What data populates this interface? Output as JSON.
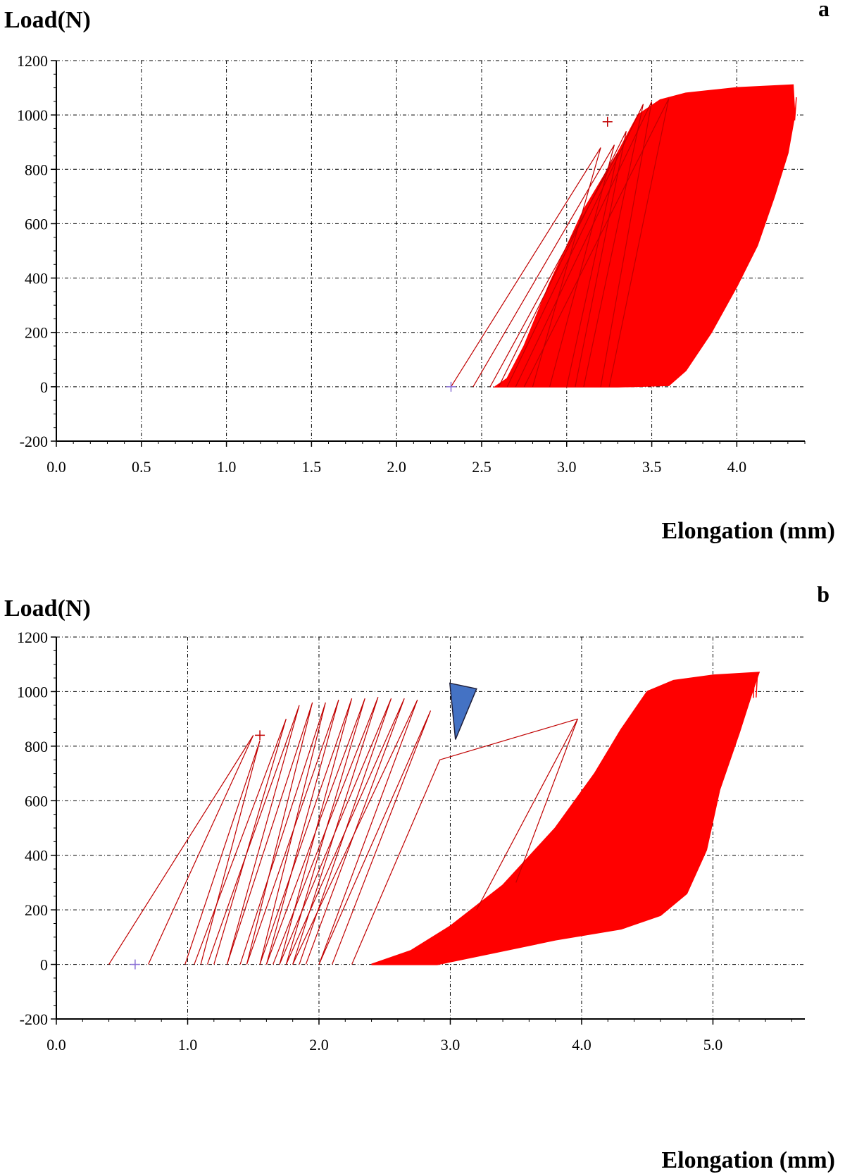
{
  "chart_data": [
    {
      "type": "line",
      "panel_letter": "a",
      "ylabel": "Load(N)",
      "xlabel": "Elongation (mm)",
      "xlim": [
        0,
        4.4
      ],
      "ylim": [
        -200,
        1200
      ],
      "xticks": [
        "0.0",
        "0.5",
        "1.0",
        "1.5",
        "2.0",
        "2.5",
        "3.0",
        "3.5",
        "4.0"
      ],
      "xtick_values": [
        0,
        0.5,
        1.0,
        1.5,
        2.0,
        2.5,
        3.0,
        3.5,
        4.0
      ],
      "yticks": [
        "-200",
        "0",
        "200",
        "400",
        "600",
        "800",
        "1000",
        "1200"
      ],
      "ytick_values": [
        -200,
        0,
        200,
        400,
        600,
        800,
        1000,
        1200
      ],
      "grid": true,
      "series_color": "#ff0000",
      "loop_color": "#c00000",
      "dense_region": {
        "envelope": [
          [
            2.58,
            0
          ],
          [
            3.0,
            0
          ],
          [
            3.3,
            0
          ],
          [
            3.6,
            5
          ],
          [
            3.7,
            60
          ],
          [
            3.85,
            200
          ],
          [
            4.0,
            370
          ],
          [
            4.12,
            520
          ],
          [
            4.22,
            700
          ],
          [
            4.3,
            860
          ],
          [
            4.34,
            1000
          ],
          [
            4.33,
            1110
          ],
          [
            4.0,
            1100
          ],
          [
            3.7,
            1080
          ],
          [
            3.55,
            1055
          ],
          [
            3.42,
            1000
          ],
          [
            3.3,
            860
          ],
          [
            3.1,
            650
          ],
          [
            2.9,
            380
          ],
          [
            2.75,
            150
          ],
          [
            2.65,
            30
          ]
        ]
      },
      "loops": [
        {
          "x0": 2.32,
          "y0": 0,
          "x1": 3.2,
          "y1": 880,
          "x2": 2.8,
          "y2": 0
        },
        {
          "x0": 2.45,
          "y0": 0,
          "x1": 3.28,
          "y1": 890,
          "x2": 2.9,
          "y2": 0
        },
        {
          "x0": 2.55,
          "y0": 0,
          "x1": 3.3,
          "y1": 860,
          "x2": 3.0,
          "y2": 0
        },
        {
          "x0": 2.6,
          "y0": 0,
          "x1": 3.35,
          "y1": 940,
          "x2": 3.05,
          "y2": 0
        },
        {
          "x0": 2.65,
          "y0": 0,
          "x1": 3.45,
          "y1": 1040,
          "x2": 3.1,
          "y2": 0
        },
        {
          "x0": 2.7,
          "y0": 0,
          "x1": 3.5,
          "y1": 1050,
          "x2": 3.2,
          "y2": 0
        },
        {
          "x0": 2.75,
          "y0": 0,
          "x1": 3.6,
          "y1": 1060,
          "x2": 3.25,
          "y2": 0
        }
      ],
      "markers": [
        {
          "x": 3.24,
          "y": 975,
          "color": "#c00000"
        },
        {
          "x": 2.32,
          "y": 0,
          "color": "#8a6fd6"
        }
      ]
    },
    {
      "type": "line",
      "panel_letter": "b",
      "ylabel": "Load(N)",
      "xlabel": "Elongation (mm)",
      "xlim": [
        0,
        5.7
      ],
      "ylim": [
        -200,
        1200
      ],
      "xticks": [
        "0.0",
        "1.0",
        "2.0",
        "3.0",
        "4.0",
        "5.0"
      ],
      "xtick_values": [
        0,
        1.0,
        2.0,
        3.0,
        4.0,
        5.0
      ],
      "yticks": [
        "-200",
        "0",
        "200",
        "400",
        "600",
        "800",
        "1000",
        "1200"
      ],
      "ytick_values": [
        -200,
        0,
        200,
        400,
        600,
        800,
        1000,
        1200
      ],
      "grid": true,
      "series_color": "#ff0000",
      "loop_color": "#c00000",
      "dense_region": {
        "envelope": [
          [
            2.4,
            0
          ],
          [
            2.9,
            0
          ],
          [
            3.3,
            40
          ],
          [
            3.8,
            90
          ],
          [
            4.3,
            130
          ],
          [
            4.6,
            180
          ],
          [
            4.8,
            260
          ],
          [
            4.95,
            420
          ],
          [
            5.05,
            640
          ],
          [
            5.2,
            850
          ],
          [
            5.3,
            1000
          ],
          [
            5.35,
            1070
          ],
          [
            5.0,
            1060
          ],
          [
            4.7,
            1040
          ],
          [
            4.5,
            1000
          ],
          [
            4.3,
            860
          ],
          [
            4.1,
            700
          ],
          [
            3.8,
            500
          ],
          [
            3.4,
            290
          ],
          [
            3.0,
            140
          ],
          [
            2.7,
            50
          ]
        ]
      },
      "loops": [
        {
          "x0": 0.4,
          "y0": 0,
          "x1": 1.5,
          "y1": 840,
          "x2": 0.7,
          "y2": 0
        },
        {
          "x0": 0.98,
          "y0": 0,
          "x1": 1.55,
          "y1": 820,
          "x2": 1.1,
          "y2": 0
        },
        {
          "x0": 1.05,
          "y0": 0,
          "x1": 1.75,
          "y1": 900,
          "x2": 1.2,
          "y2": 0
        },
        {
          "x0": 1.15,
          "y0": 0,
          "x1": 1.85,
          "y1": 950,
          "x2": 1.3,
          "y2": 0
        },
        {
          "x0": 1.3,
          "y0": 0,
          "x1": 1.95,
          "y1": 960,
          "x2": 1.45,
          "y2": 0
        },
        {
          "x0": 1.4,
          "y0": 0,
          "x1": 2.05,
          "y1": 960,
          "x2": 1.55,
          "y2": 0
        },
        {
          "x0": 1.45,
          "y0": 0,
          "x1": 2.15,
          "y1": 970,
          "x2": 1.6,
          "y2": 0
        },
        {
          "x0": 1.55,
          "y0": 0,
          "x1": 2.25,
          "y1": 975,
          "x2": 1.7,
          "y2": 0
        },
        {
          "x0": 1.6,
          "y0": 0,
          "x1": 2.35,
          "y1": 975,
          "x2": 1.75,
          "y2": 0
        },
        {
          "x0": 1.65,
          "y0": 0,
          "x1": 2.45,
          "y1": 980,
          "x2": 1.8,
          "y2": 0
        },
        {
          "x0": 1.7,
          "y0": 0,
          "x1": 2.55,
          "y1": 975,
          "x2": 1.85,
          "y2": 0
        },
        {
          "x0": 1.75,
          "y0": 0,
          "x1": 2.65,
          "y1": 975,
          "x2": 1.9,
          "y2": 0
        },
        {
          "x0": 1.8,
          "y0": 0,
          "x1": 2.75,
          "y1": 970,
          "x2": 2.0,
          "y2": 0
        },
        {
          "x0": 2.0,
          "y0": 0,
          "x1": 2.85,
          "y1": 930,
          "x2": 2.1,
          "y2": 0
        },
        {
          "x0": 2.25,
          "y0": 0,
          "x1": 2.92,
          "y1": 750,
          "x2": 3.97,
          "y2": 900
        }
      ],
      "extra_lines": [
        {
          "x0": 3.97,
          "y0": 900,
          "x1": 3.2,
          "y1": 200
        },
        {
          "x0": 3.97,
          "y0": 900,
          "x1": 3.5,
          "y1": 300
        }
      ],
      "markers": [
        {
          "x": 1.55,
          "y": 840,
          "color": "#c00000"
        },
        {
          "x": 0.6,
          "y": 0,
          "color": "#8a6fd6"
        }
      ],
      "annotation": {
        "shape": "triangle",
        "color": "#4472c4",
        "x": 3.05,
        "y": 1000
      }
    }
  ]
}
